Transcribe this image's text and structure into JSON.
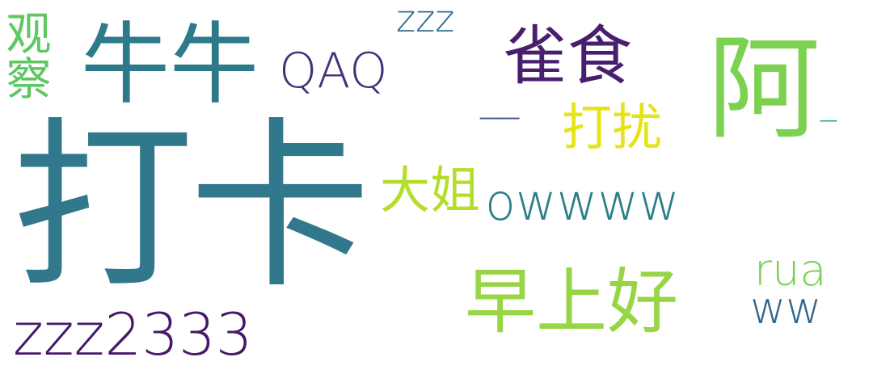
{
  "word_cloud": {
    "words": [
      {
        "text": "打卡",
        "color": "#31788d"
      },
      {
        "text": "阿",
        "color": "#7dd151"
      },
      {
        "text": "牛牛",
        "color": "#2c7a8a"
      },
      {
        "text": "zzz2333",
        "color": "#46176b"
      },
      {
        "text": "早上好",
        "color": "#97d547"
      },
      {
        "text": "雀食",
        "color": "#481e6f"
      },
      {
        "text": "大姐",
        "color": "#b4de2c"
      },
      {
        "text": "owwww",
        "color": "#2a8087"
      },
      {
        "text": "QAQ",
        "color": "#47307b"
      },
      {
        "text": "观察",
        "color": "#5ec762"
      },
      {
        "text": "打扰",
        "color": "#e4e419"
      },
      {
        "text": "__",
        "color": "#3c4d8a"
      },
      {
        "text": "zzz",
        "color": "#2f6b8e"
      },
      {
        "text": "rua",
        "color": "#7ad151"
      },
      {
        "text": "ww",
        "color": "#31678e"
      },
      {
        "text": "_",
        "color": "#1fa187"
      }
    ]
  }
}
